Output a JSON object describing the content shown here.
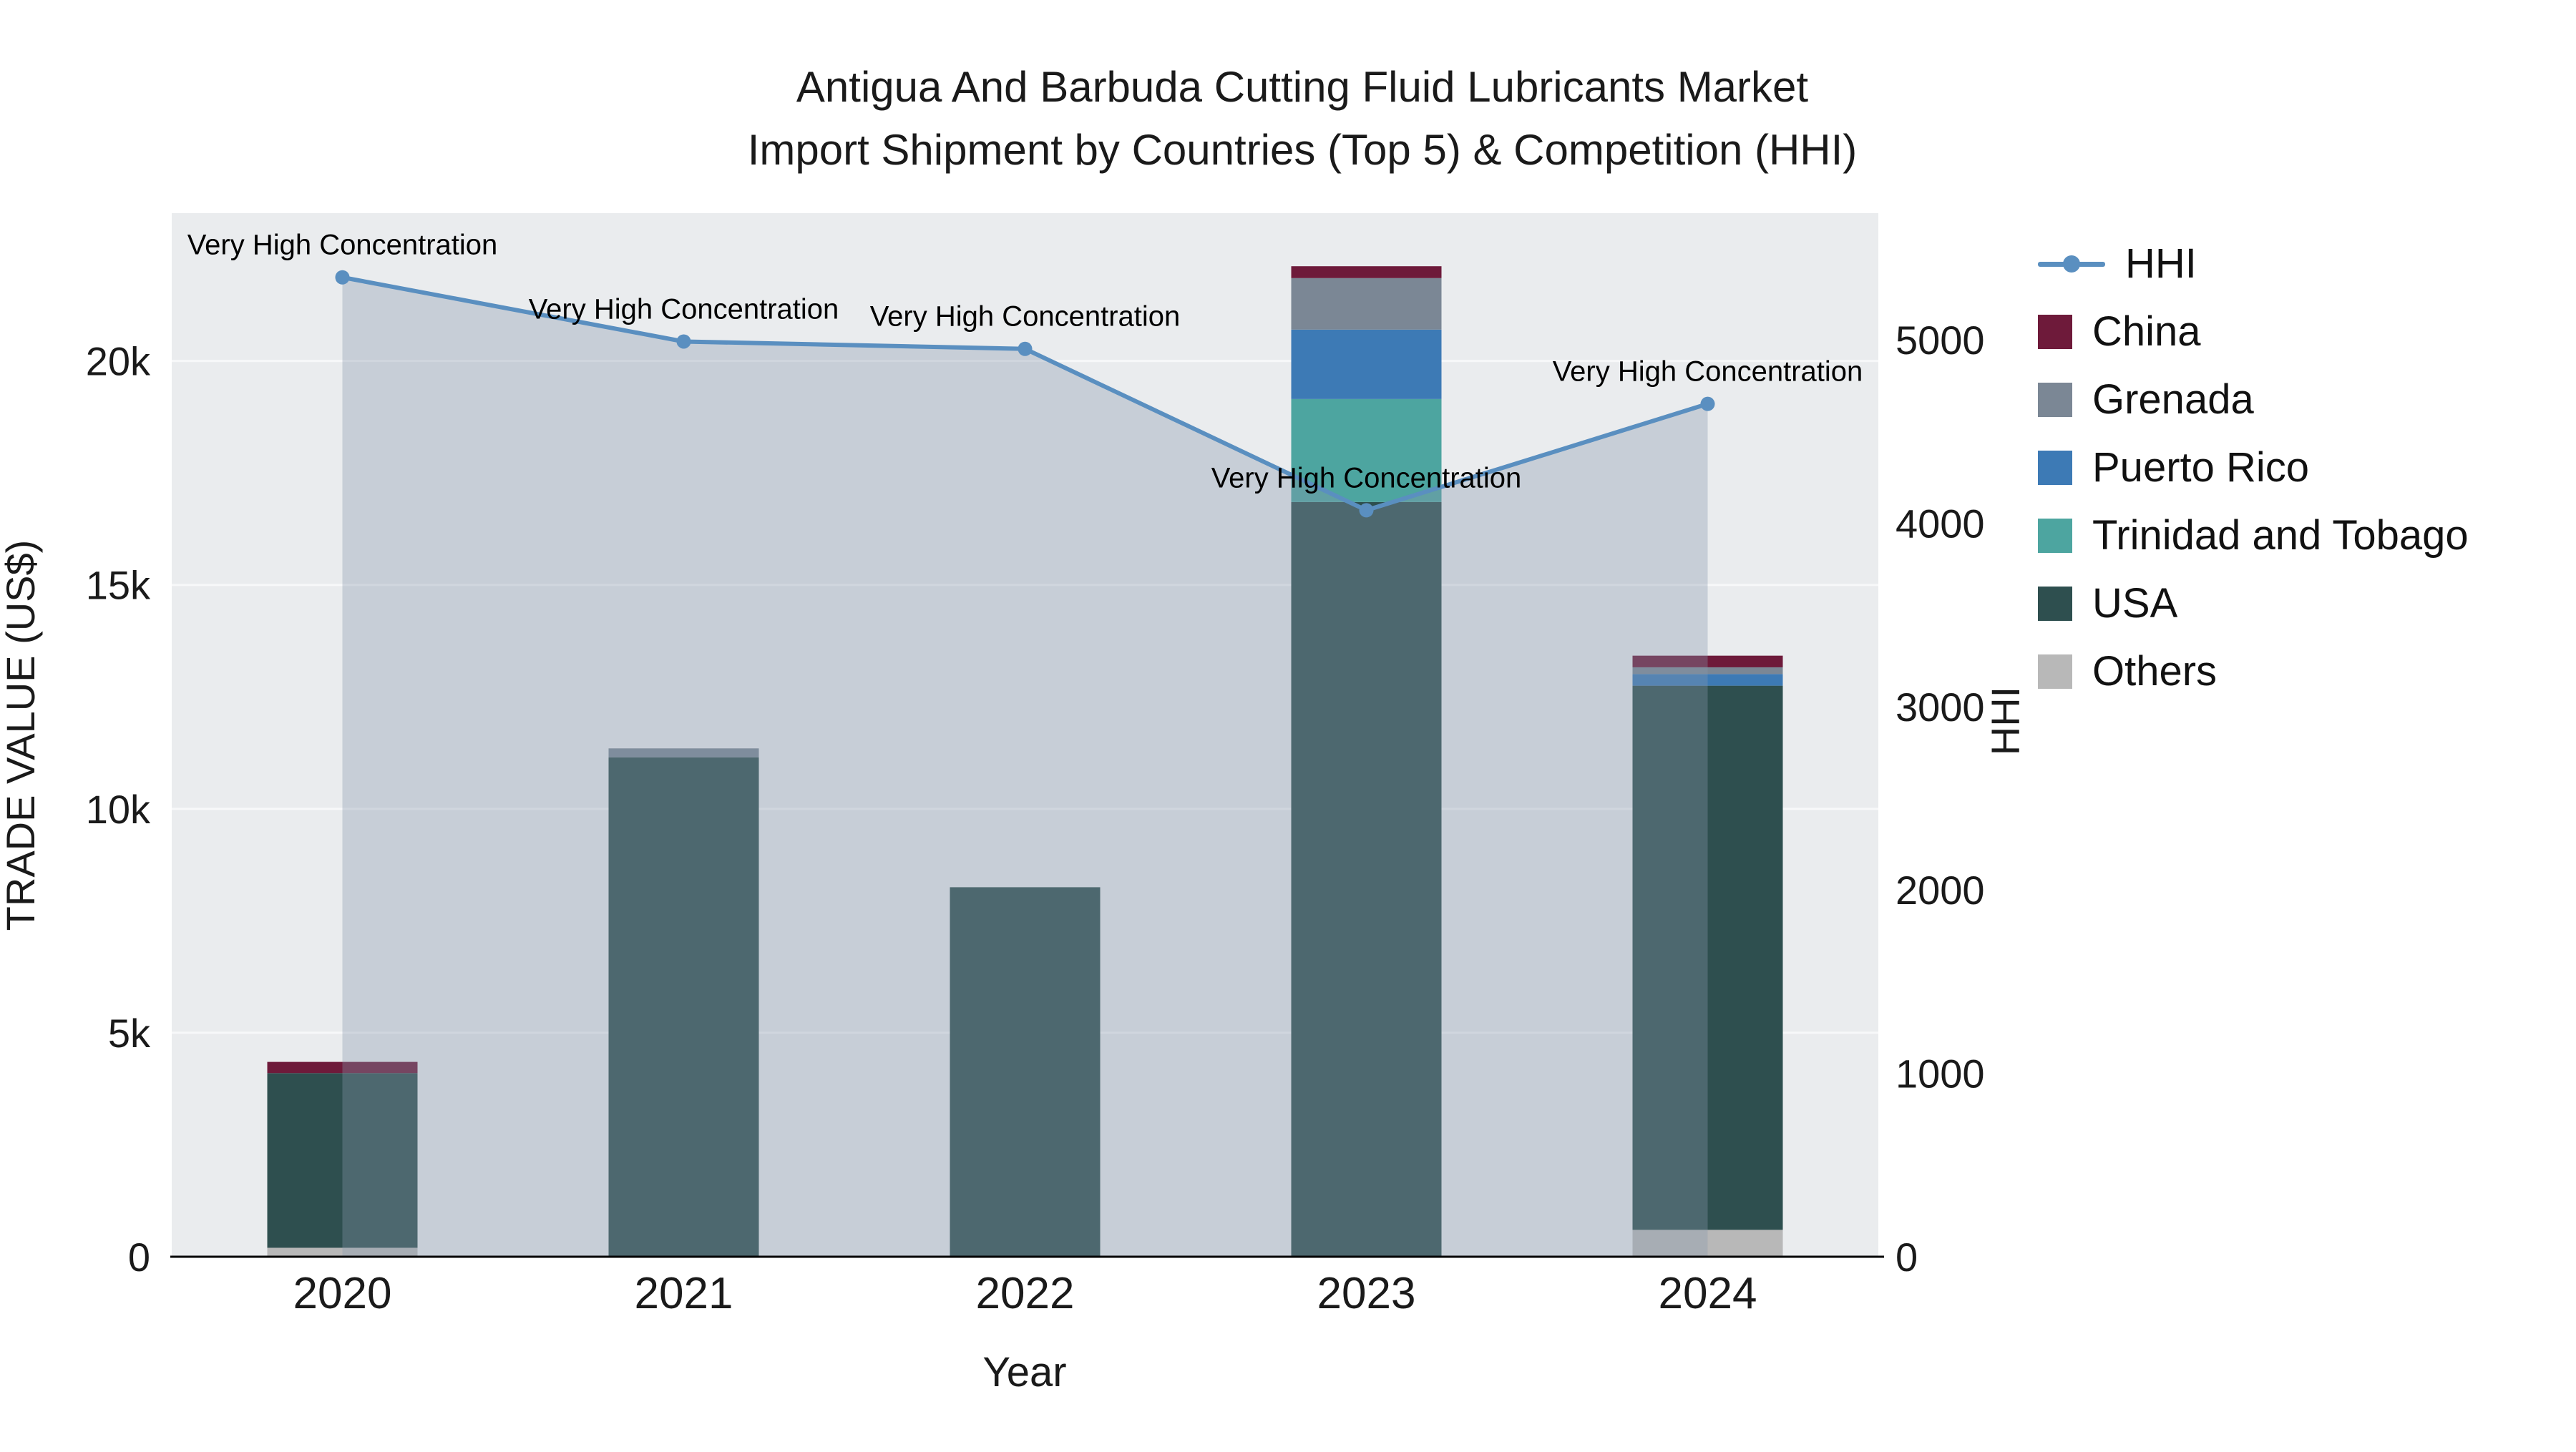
{
  "title": {
    "line1": "Antigua And Barbuda Cutting Fluid Lubricants Market",
    "line2": "Import Shipment by Countries (Top 5) & Competition (HHI)"
  },
  "axes": {
    "x": {
      "label": "Year"
    },
    "y_left": {
      "label": "TRADE VALUE (US$)",
      "ticks": [
        {
          "label": "0",
          "value": 0
        },
        {
          "label": "5k",
          "value": 5000
        },
        {
          "label": "10k",
          "value": 10000
        },
        {
          "label": "15k",
          "value": 15000
        },
        {
          "label": "20k",
          "value": 20000
        }
      ]
    },
    "y_right": {
      "label": "HHI",
      "ticks": [
        {
          "label": "0",
          "value": 0
        },
        {
          "label": "1000",
          "value": 1000
        },
        {
          "label": "2000",
          "value": 2000
        },
        {
          "label": "3000",
          "value": 3000
        },
        {
          "label": "4000",
          "value": 4000
        },
        {
          "label": "5000",
          "value": 5000
        }
      ]
    }
  },
  "legend": [
    {
      "label": "HHI",
      "type": "line",
      "color": "#5a8fc0"
    },
    {
      "label": "China",
      "type": "square",
      "color": "#6e1a3a"
    },
    {
      "label": "Grenada",
      "type": "square",
      "color": "#7b8795"
    },
    {
      "label": "Puerto Rico",
      "type": "square",
      "color": "#3d7ab5"
    },
    {
      "label": "Trinidad and Tobago",
      "type": "square",
      "color": "#4da5a0"
    },
    {
      "label": "USA",
      "type": "square",
      "color": "#2e4f4f"
    },
    {
      "label": "Others",
      "type": "square",
      "color": "#b8b8b8"
    }
  ],
  "colors": {
    "plot_bg": "#eaecee",
    "grid": "#f7f8f9",
    "axis_line": "#000000",
    "text": "#1a1a1a"
  },
  "chart_data": {
    "type": "combo-stacked-bar-line",
    "title": "Antigua And Barbuda Cutting Fluid Lubricants Market — Import Shipment by Countries (Top 5) & Competition (HHI)",
    "xlabel": "Year",
    "ylabel_left": "TRADE VALUE (US$)",
    "ylabel_right": "HHI",
    "categories": [
      "2020",
      "2021",
      "2022",
      "2023",
      "2024"
    ],
    "bar_axis": "left",
    "bar_unit": "US$",
    "y_left_max": 23300,
    "y_right_max": 5690,
    "bar_series": [
      {
        "name": "Others",
        "color": "#b8b8b8",
        "values": [
          200,
          0,
          0,
          0,
          600
        ]
      },
      {
        "name": "USA",
        "color": "#2e4f4f",
        "values": [
          3900,
          11150,
          8250,
          16850,
          12150
        ]
      },
      {
        "name": "Trinidad and Tobago",
        "color": "#4da5a0",
        "values": [
          0,
          0,
          0,
          2300,
          0
        ]
      },
      {
        "name": "Puerto Rico",
        "color": "#3d7ab5",
        "values": [
          0,
          0,
          0,
          1550,
          260
        ]
      },
      {
        "name": "Grenada",
        "color": "#7b8795",
        "values": [
          0,
          200,
          0,
          1150,
          150
        ]
      },
      {
        "name": "China",
        "color": "#6e1a3a",
        "values": [
          250,
          0,
          0,
          265,
          260
        ]
      }
    ],
    "line_series": {
      "name": "HHI",
      "axis": "right",
      "color": "#5a8fc0",
      "area_fill": "rgba(134,153,172,0.35)",
      "values": [
        5340,
        4990,
        4950,
        4070,
        4650
      ]
    },
    "annotations": [
      {
        "category": "2020",
        "text": "Very High Concentration"
      },
      {
        "category": "2021",
        "text": "Very High Concentration"
      },
      {
        "category": "2022",
        "text": "Very High Concentration"
      },
      {
        "category": "2023",
        "text": "Very High Concentration"
      },
      {
        "category": "2024",
        "text": "Very High Concentration"
      }
    ]
  }
}
